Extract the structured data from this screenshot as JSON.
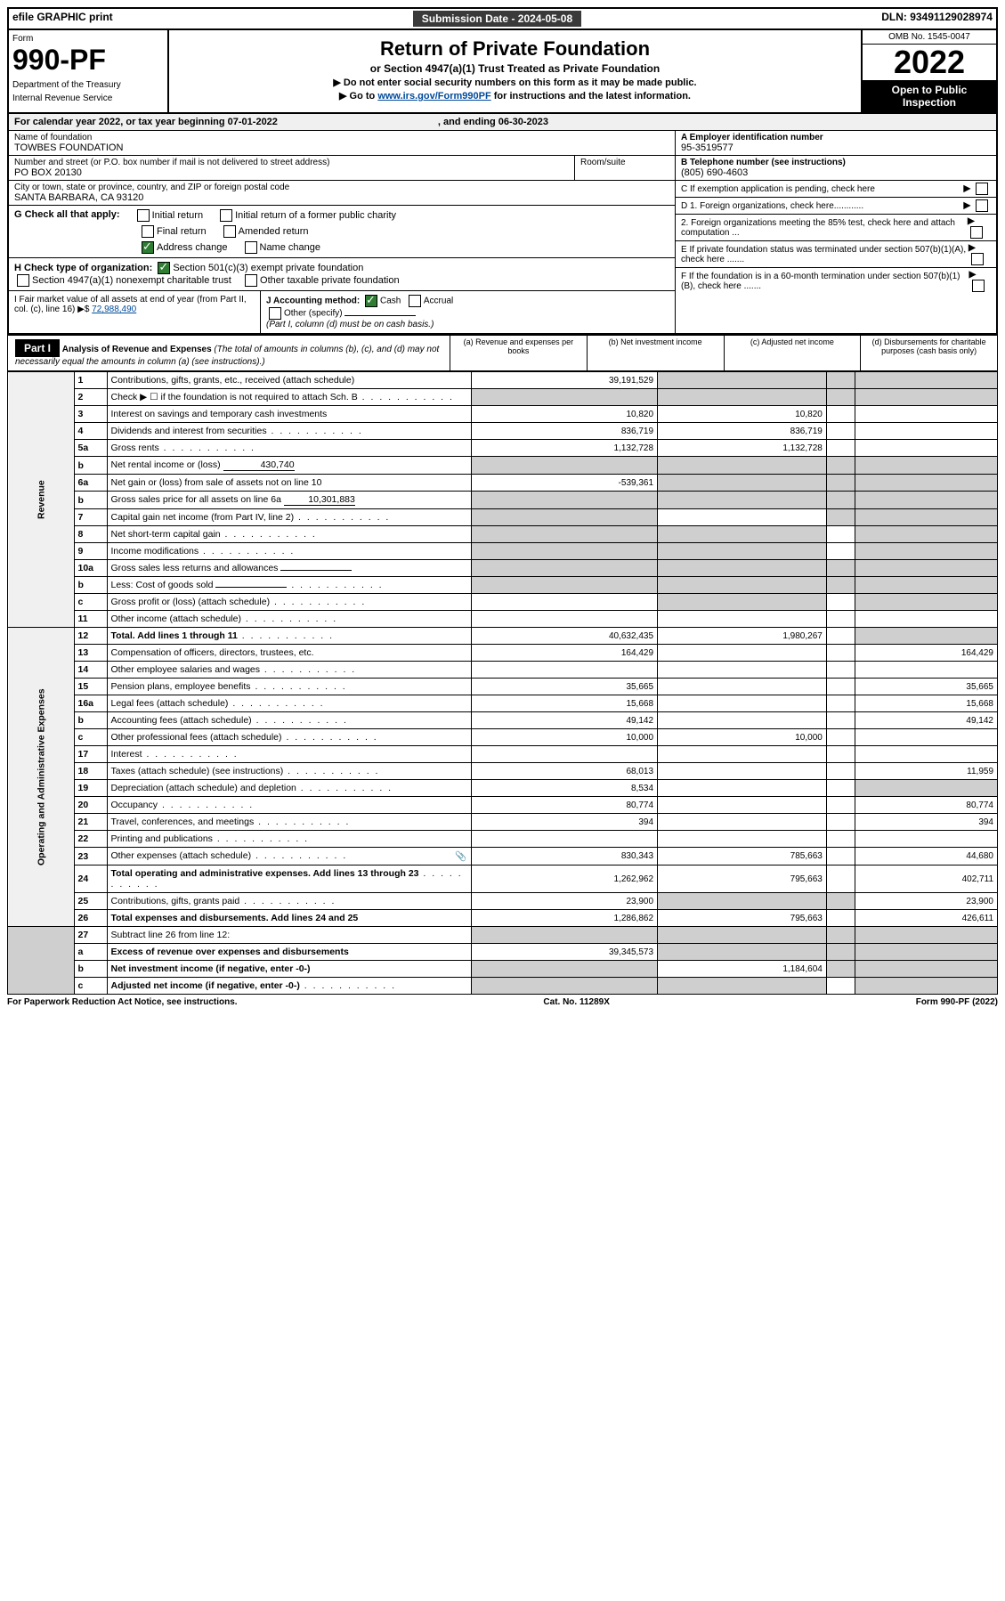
{
  "topbar": {
    "left": "efile GRAPHIC print",
    "mid": "Submission Date - 2024-05-08",
    "right": "DLN: 93491129028974"
  },
  "header": {
    "form_label": "Form",
    "form_no": "990-PF",
    "dept1": "Department of the Treasury",
    "dept2": "Internal Revenue Service",
    "title": "Return of Private Foundation",
    "subtitle": "or Section 4947(a)(1) Trust Treated as Private Foundation",
    "note1": "▶ Do not enter social security numbers on this form as it may be made public.",
    "note2_pre": "▶ Go to ",
    "note2_link": "www.irs.gov/Form990PF",
    "note2_post": " for instructions and the latest information.",
    "omb": "OMB No. 1545-0047",
    "year": "2022",
    "open": "Open to Public Inspection"
  },
  "calendar": {
    "line": "For calendar year 2022, or tax year beginning 07-01-2022",
    "end": ", and ending 06-30-2023"
  },
  "foundation": {
    "name_lbl": "Name of foundation",
    "name": "TOWBES FOUNDATION",
    "addr_lbl": "Number and street (or P.O. box number if mail is not delivered to street address)",
    "addr": "PO BOX 20130",
    "room_lbl": "Room/suite",
    "city_lbl": "City or town, state or province, country, and ZIP or foreign postal code",
    "city": "SANTA BARBARA, CA  93120",
    "ein_lbl": "A Employer identification number",
    "ein": "95-3519577",
    "tel_lbl": "B Telephone number (see instructions)",
    "tel": "(805) 690-4603",
    "c": "C If exemption application is pending, check here",
    "d1": "D 1. Foreign organizations, check here............",
    "d2": "2. Foreign organizations meeting the 85% test, check here and attach computation ...",
    "e": "E  If private foundation status was terminated under section 507(b)(1)(A), check here .......",
    "f": "F  If the foundation is in a 60-month termination under section 507(b)(1)(B), check here .......",
    "g_lbl": "G Check all that apply:",
    "g_opts": [
      "Initial return",
      "Initial return of a former public charity",
      "Final return",
      "Amended return",
      "Address change",
      "Name change"
    ],
    "h_lbl": "H Check type of organization:",
    "h1": "Section 501(c)(3) exempt private foundation",
    "h2": "Section 4947(a)(1) nonexempt charitable trust",
    "h3": "Other taxable private foundation",
    "i": "I Fair market value of all assets at end of year (from Part II, col. (c), line 16) ▶$ ",
    "i_val": "72,988,490",
    "j_lbl": "J Accounting method:",
    "j_cash": "Cash",
    "j_accrual": "Accrual",
    "j_other": "Other (specify)",
    "j_note": "(Part I, column (d) must be on cash basis.)"
  },
  "part1": {
    "tag": "Part I",
    "title": "Analysis of Revenue and Expenses",
    "title_note": "(The total of amounts in columns (b), (c), and (d) may not necessarily equal the amounts in column (a) (see instructions).)",
    "col_a": "(a)   Revenue and expenses per books",
    "col_b": "(b)   Net investment income",
    "col_c": "(c)   Adjusted net income",
    "col_d": "(d)   Disbursements for charitable purposes (cash basis only)",
    "side_rev": "Revenue",
    "side_op": "Operating and Administrative Expenses"
  },
  "rows": [
    {
      "ln": "1",
      "desc": "Contributions, gifts, grants, etc., received (attach schedule)",
      "a": "39,191,529",
      "b": "",
      "c": "",
      "d": "",
      "b_sh": true,
      "c_sh": true,
      "d_sh": true
    },
    {
      "ln": "2",
      "desc": "Check ▶ ☐ if the foundation is not required to attach Sch. B",
      "a": "",
      "b": "",
      "c": "",
      "d": "",
      "a_sh": true,
      "b_sh": true,
      "c_sh": true,
      "d_sh": true,
      "dots": true
    },
    {
      "ln": "3",
      "desc": "Interest on savings and temporary cash investments",
      "a": "10,820",
      "b": "10,820",
      "c": "",
      "d": ""
    },
    {
      "ln": "4",
      "desc": "Dividends and interest from securities",
      "a": "836,719",
      "b": "836,719",
      "c": "",
      "d": "",
      "dots": true
    },
    {
      "ln": "5a",
      "desc": "Gross rents",
      "a": "1,132,728",
      "b": "1,132,728",
      "c": "",
      "d": "",
      "dots": true
    },
    {
      "ln": "b",
      "desc": "Net rental income or (loss)",
      "inline": "430,740",
      "a": "",
      "b": "",
      "c": "",
      "d": "",
      "a_sh": true,
      "b_sh": true,
      "c_sh": true,
      "d_sh": true
    },
    {
      "ln": "6a",
      "desc": "Net gain or (loss) from sale of assets not on line 10",
      "a": "-539,361",
      "b": "",
      "c": "",
      "d": "",
      "b_sh": true,
      "c_sh": true,
      "d_sh": true
    },
    {
      "ln": "b",
      "desc": "Gross sales price for all assets on line 6a",
      "inline": "10,301,883",
      "a": "",
      "b": "",
      "c": "",
      "d": "",
      "a_sh": true,
      "b_sh": true,
      "c_sh": true,
      "d_sh": true
    },
    {
      "ln": "7",
      "desc": "Capital gain net income (from Part IV, line 2)",
      "a": "",
      "b": "",
      "c": "",
      "d": "",
      "a_sh": true,
      "c_sh": true,
      "d_sh": true,
      "dots": true
    },
    {
      "ln": "8",
      "desc": "Net short-term capital gain",
      "a": "",
      "b": "",
      "c": "",
      "d": "",
      "a_sh": true,
      "b_sh": true,
      "d_sh": true,
      "dots": true
    },
    {
      "ln": "9",
      "desc": "Income modifications",
      "a": "",
      "b": "",
      "c": "",
      "d": "",
      "a_sh": true,
      "b_sh": true,
      "d_sh": true,
      "dots": true
    },
    {
      "ln": "10a",
      "desc": "Gross sales less returns and allowances",
      "inline": "",
      "a": "",
      "b": "",
      "c": "",
      "d": "",
      "a_sh": true,
      "b_sh": true,
      "c_sh": true,
      "d_sh": true
    },
    {
      "ln": "b",
      "desc": "Less: Cost of goods sold",
      "inline": "",
      "a": "",
      "b": "",
      "c": "",
      "d": "",
      "a_sh": true,
      "b_sh": true,
      "c_sh": true,
      "d_sh": true,
      "dots": true
    },
    {
      "ln": "c",
      "desc": "Gross profit or (loss) (attach schedule)",
      "a": "",
      "b": "",
      "c": "",
      "d": "",
      "b_sh": true,
      "d_sh": true,
      "dots": true
    },
    {
      "ln": "11",
      "desc": "Other income (attach schedule)",
      "a": "",
      "b": "",
      "c": "",
      "d": "",
      "dots": true
    },
    {
      "ln": "12",
      "desc": "Total. Add lines 1 through 11",
      "a": "40,632,435",
      "b": "1,980,267",
      "c": "",
      "d": "",
      "d_sh": true,
      "bold": true,
      "dots": true
    },
    {
      "ln": "13",
      "desc": "Compensation of officers, directors, trustees, etc.",
      "a": "164,429",
      "b": "",
      "c": "",
      "d": "164,429"
    },
    {
      "ln": "14",
      "desc": "Other employee salaries and wages",
      "a": "",
      "b": "",
      "c": "",
      "d": "",
      "dots": true
    },
    {
      "ln": "15",
      "desc": "Pension plans, employee benefits",
      "a": "35,665",
      "b": "",
      "c": "",
      "d": "35,665",
      "dots": true
    },
    {
      "ln": "16a",
      "desc": "Legal fees (attach schedule)",
      "a": "15,668",
      "b": "",
      "c": "",
      "d": "15,668",
      "dots": true
    },
    {
      "ln": "b",
      "desc": "Accounting fees (attach schedule)",
      "a": "49,142",
      "b": "",
      "c": "",
      "d": "49,142",
      "dots": true
    },
    {
      "ln": "c",
      "desc": "Other professional fees (attach schedule)",
      "a": "10,000",
      "b": "10,000",
      "c": "",
      "d": "",
      "dots": true
    },
    {
      "ln": "17",
      "desc": "Interest",
      "a": "",
      "b": "",
      "c": "",
      "d": "",
      "dots": true
    },
    {
      "ln": "18",
      "desc": "Taxes (attach schedule) (see instructions)",
      "a": "68,013",
      "b": "",
      "c": "",
      "d": "11,959",
      "dots": true
    },
    {
      "ln": "19",
      "desc": "Depreciation (attach schedule) and depletion",
      "a": "8,534",
      "b": "",
      "c": "",
      "d": "",
      "d_sh": true,
      "dots": true
    },
    {
      "ln": "20",
      "desc": "Occupancy",
      "a": "80,774",
      "b": "",
      "c": "",
      "d": "80,774",
      "dots": true
    },
    {
      "ln": "21",
      "desc": "Travel, conferences, and meetings",
      "a": "394",
      "b": "",
      "c": "",
      "d": "394",
      "dots": true
    },
    {
      "ln": "22",
      "desc": "Printing and publications",
      "a": "",
      "b": "",
      "c": "",
      "d": "",
      "dots": true
    },
    {
      "ln": "23",
      "desc": "Other expenses (attach schedule)",
      "a": "830,343",
      "b": "785,663",
      "c": "",
      "d": "44,680",
      "icon": true,
      "dots": true
    },
    {
      "ln": "24",
      "desc": "Total operating and administrative expenses. Add lines 13 through 23",
      "a": "1,262,962",
      "b": "795,663",
      "c": "",
      "d": "402,711",
      "bold": true,
      "dots": true
    },
    {
      "ln": "25",
      "desc": "Contributions, gifts, grants paid",
      "a": "23,900",
      "b": "",
      "c": "",
      "d": "23,900",
      "b_sh": true,
      "c_sh": true,
      "dots": true
    },
    {
      "ln": "26",
      "desc": "Total expenses and disbursements. Add lines 24 and 25",
      "a": "1,286,862",
      "b": "795,663",
      "c": "",
      "d": "426,611",
      "bold": true
    },
    {
      "ln": "27",
      "desc": "Subtract line 26 from line 12:",
      "a": "",
      "b": "",
      "c": "",
      "d": "",
      "a_sh": true,
      "b_sh": true,
      "c_sh": true,
      "d_sh": true
    },
    {
      "ln": "a",
      "desc": "Excess of revenue over expenses and disbursements",
      "a": "39,345,573",
      "b": "",
      "c": "",
      "d": "",
      "b_sh": true,
      "c_sh": true,
      "d_sh": true,
      "bold": true
    },
    {
      "ln": "b",
      "desc": "Net investment income (if negative, enter -0-)",
      "a": "",
      "b": "1,184,604",
      "c": "",
      "d": "",
      "a_sh": true,
      "c_sh": true,
      "d_sh": true,
      "bold": true
    },
    {
      "ln": "c",
      "desc": "Adjusted net income (if negative, enter -0-)",
      "a": "",
      "b": "",
      "c": "",
      "d": "",
      "a_sh": true,
      "b_sh": true,
      "d_sh": true,
      "bold": true,
      "dots": true
    }
  ],
  "footer": {
    "left": "For Paperwork Reduction Act Notice, see instructions.",
    "mid": "Cat. No. 11289X",
    "right": "Form 990-PF (2022)"
  }
}
